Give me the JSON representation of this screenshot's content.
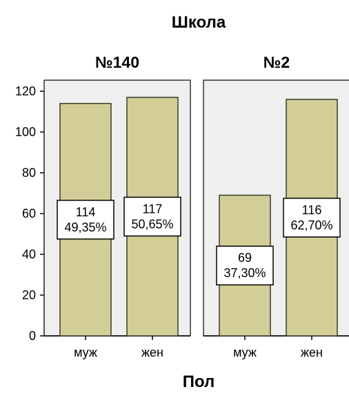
{
  "chart_data": {
    "type": "bar",
    "title": "Школа",
    "xlabel": "Пол",
    "ylabel": "",
    "ylim": [
      0,
      120
    ],
    "yticks": [
      "0",
      "20",
      "40",
      "60",
      "80",
      "100",
      "120"
    ],
    "categories": [
      "муж",
      "жен"
    ],
    "panels": [
      {
        "name": "№140",
        "values": [
          114,
          117
        ],
        "labels": [
          {
            "count": "114",
            "percent": "49,35%"
          },
          {
            "count": "117",
            "percent": "50,65%"
          }
        ]
      },
      {
        "name": "№2",
        "values": [
          69,
          116
        ],
        "labels": [
          {
            "count": "69",
            "percent": "37,30%"
          },
          {
            "count": "116",
            "percent": "62,70%"
          }
        ]
      }
    ],
    "colors": {
      "bar_fill": "#D3CE97",
      "bar_stroke": "#3a3a2a",
      "panel_bg": "#EFEFEF",
      "panel_border": "#333333"
    },
    "grid": false
  }
}
